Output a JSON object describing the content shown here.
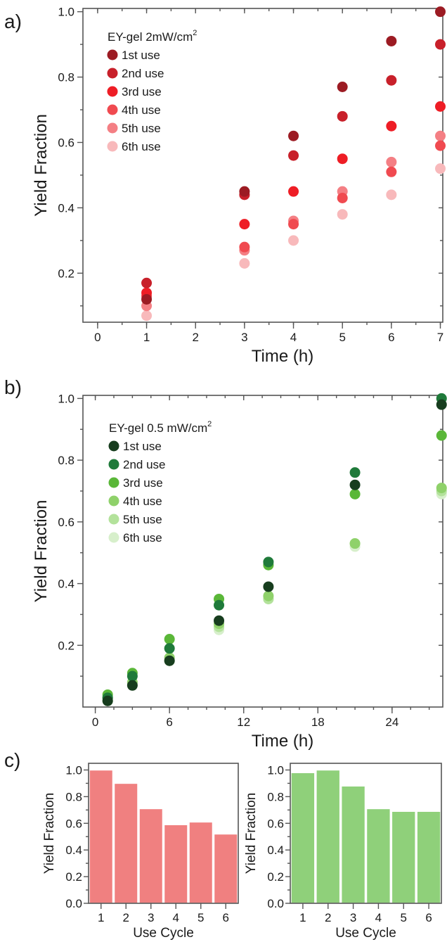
{
  "panels": {
    "a": {
      "label": "a)"
    },
    "b": {
      "label": "b)"
    },
    "c": {
      "label": "c)"
    }
  },
  "chart_data": [
    {
      "id": "a",
      "type": "scatter",
      "xlabel": "Time (h)",
      "ylabel": "Yield Fraction",
      "xlim": [
        -0.3,
        7.05
      ],
      "ylim": [
        0.05,
        1.01
      ],
      "xticks": [
        0,
        1,
        2,
        3,
        4,
        5,
        6,
        7
      ],
      "yticks": [
        0.2,
        0.4,
        0.6,
        0.8,
        1.0
      ],
      "ytick_labels": [
        "0.2",
        "0.4",
        "0.6",
        "0.8",
        "1.0"
      ],
      "legend_title": "EY-gel 2mW/cm",
      "legend_title_sup": "2",
      "legend_position": "top-left",
      "series": [
        {
          "name": "1st use",
          "color": "#9c1b23",
          "x": [
            1,
            3,
            4,
            5,
            6,
            7
          ],
          "y": [
            0.12,
            0.45,
            0.62,
            0.77,
            0.91,
            1.0
          ]
        },
        {
          "name": "2nd use",
          "color": "#c8202a",
          "x": [
            1,
            3,
            4,
            5,
            6,
            7
          ],
          "y": [
            0.17,
            0.44,
            0.56,
            0.68,
            0.79,
            0.9
          ]
        },
        {
          "name": "3rd use",
          "color": "#ee1d25",
          "x": [
            1,
            3,
            4,
            5,
            6,
            7
          ],
          "y": [
            0.14,
            0.35,
            0.45,
            0.55,
            0.65,
            0.71
          ]
        },
        {
          "name": "4th use",
          "color": "#f04a50",
          "x": [
            1,
            3,
            4,
            5,
            6,
            7
          ],
          "y": [
            0.13,
            0.28,
            0.35,
            0.43,
            0.51,
            0.59
          ]
        },
        {
          "name": "5th use",
          "color": "#f47f84",
          "x": [
            1,
            3,
            4,
            5,
            6,
            7
          ],
          "y": [
            0.1,
            0.27,
            0.36,
            0.45,
            0.54,
            0.62
          ]
        },
        {
          "name": "6th use",
          "color": "#f8b9bb",
          "x": [
            1,
            3,
            4,
            5,
            6,
            7
          ],
          "y": [
            0.07,
            0.23,
            0.3,
            0.38,
            0.44,
            0.52
          ]
        }
      ]
    },
    {
      "id": "b",
      "type": "scatter",
      "xlabel": "Time (h)",
      "ylabel": "Yield Fraction",
      "xlim": [
        -1,
        28.1
      ],
      "ylim": [
        0.0,
        1.01
      ],
      "xticks": [
        0,
        6,
        12,
        18,
        24
      ],
      "yticks": [
        0.2,
        0.4,
        0.6,
        0.8,
        1.0
      ],
      "ytick_labels": [
        "0.2",
        "0.4",
        "0.6",
        "0.8",
        "1.0"
      ],
      "legend_title": "EY-gel 0.5 mW/cm",
      "legend_title_sup": "2",
      "legend_position": "top-left",
      "series": [
        {
          "name": "1st use",
          "color": "#173d1e",
          "x": [
            1,
            3,
            6,
            10,
            14,
            21,
            28
          ],
          "y": [
            0.02,
            0.07,
            0.15,
            0.28,
            0.39,
            0.72,
            0.98
          ]
        },
        {
          "name": "2nd use",
          "color": "#1f7a3a",
          "x": [
            1,
            3,
            6,
            10,
            14,
            21,
            28
          ],
          "y": [
            0.03,
            0.1,
            0.19,
            0.33,
            0.47,
            0.76,
            1.0
          ]
        },
        {
          "name": "3rd use",
          "color": "#5ab738",
          "x": [
            1,
            3,
            6,
            10,
            14,
            21,
            28
          ],
          "y": [
            0.04,
            0.11,
            0.22,
            0.35,
            0.46,
            0.69,
            0.88
          ]
        },
        {
          "name": "4th use",
          "color": "#8fd16a",
          "x": [
            1,
            3,
            6,
            10,
            14,
            21,
            28
          ],
          "y": [
            0.03,
            0.08,
            0.16,
            0.27,
            0.36,
            0.53,
            0.71
          ]
        },
        {
          "name": "5th use",
          "color": "#b3e29b",
          "x": [
            1,
            3,
            6,
            10,
            14,
            21,
            28
          ],
          "y": [
            0.02,
            0.08,
            0.15,
            0.26,
            0.35,
            0.53,
            0.7
          ]
        },
        {
          "name": "6th use",
          "color": "#d7efcb",
          "x": [
            1,
            3,
            6,
            10,
            14,
            21,
            28
          ],
          "y": [
            0.02,
            0.07,
            0.15,
            0.25,
            0.35,
            0.52,
            0.69
          ]
        }
      ]
    },
    {
      "id": "c-left",
      "type": "bar",
      "color": "#f08080",
      "xlabel": "Use Cycle",
      "ylabel": "Yield Fraction",
      "ylim": [
        0,
        1.05
      ],
      "yticks": [
        0.0,
        0.2,
        0.4,
        0.6,
        0.8,
        1.0
      ],
      "ytick_labels": [
        "0.0",
        "0.2",
        "0.4",
        "0.6",
        "0.8",
        "1.0"
      ],
      "categories": [
        "1",
        "2",
        "3",
        "4",
        "5",
        "6"
      ],
      "values": [
        1.0,
        0.9,
        0.71,
        0.59,
        0.61,
        0.52
      ]
    },
    {
      "id": "c-right",
      "type": "bar",
      "color": "#8fd07a",
      "xlabel": "Use Cycle",
      "ylabel": "Yield Fraction",
      "ylim": [
        0,
        1.05
      ],
      "yticks": [
        0.0,
        0.2,
        0.4,
        0.6,
        0.8,
        1.0
      ],
      "ytick_labels": [
        "0.0",
        "0.2",
        "0.4",
        "0.6",
        "0.8",
        "1.0"
      ],
      "categories": [
        "1",
        "2",
        "3",
        "4",
        "5",
        "6"
      ],
      "values": [
        0.98,
        1.0,
        0.88,
        0.71,
        0.69,
        0.69
      ]
    }
  ]
}
